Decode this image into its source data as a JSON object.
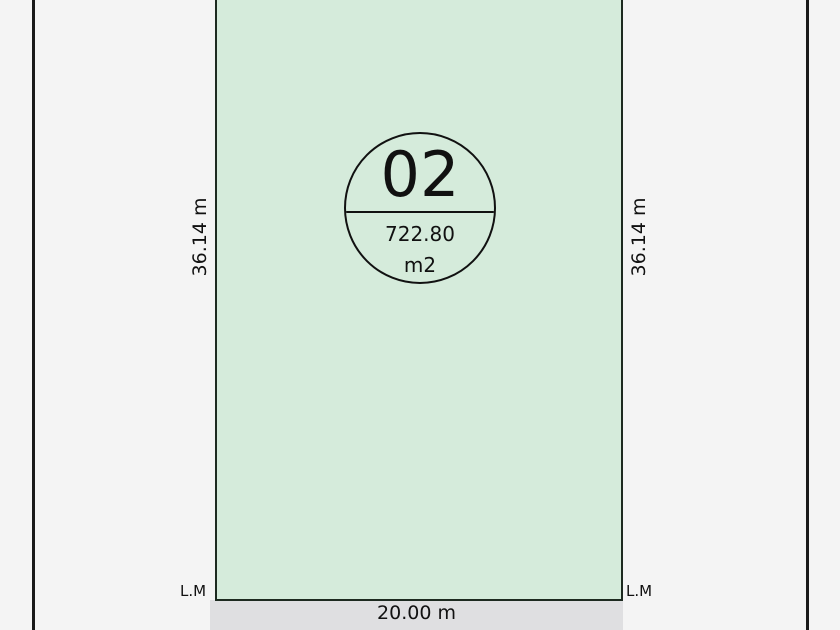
{
  "lot": {
    "number": "02",
    "area": "722.80",
    "area_unit": "m2",
    "left_side": "36.14 m",
    "right_side": "36.14 m",
    "frontage": "20.00 m",
    "left_marker": "L.M",
    "right_marker": "L.M",
    "fill_color": "#d5ebdb"
  }
}
